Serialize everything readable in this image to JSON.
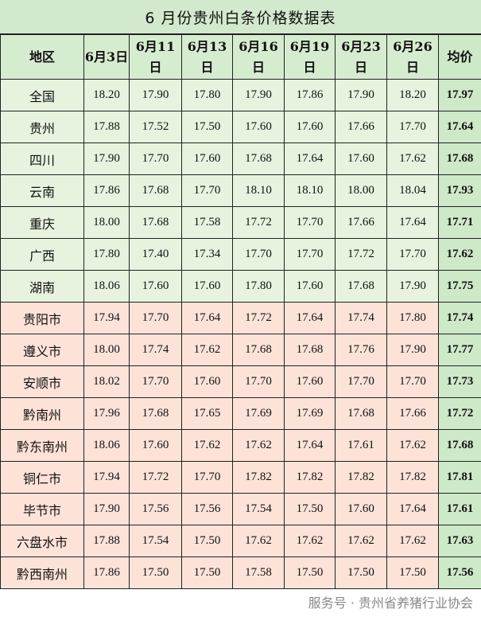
{
  "title": "6 月份贵州白条价格数据表",
  "headers": [
    "地区",
    "6月3日",
    "6月11日",
    "6月13日",
    "6月16日",
    "6月19日",
    "6月23日",
    "6月26日",
    "均价"
  ],
  "colors": {
    "province_row": "#e7f3de",
    "city_row": "#fde3d7",
    "avg_column": "#cde9c8",
    "title_bg": "#d3e9cd"
  },
  "rows": [
    {
      "region": "全国",
      "group": "province",
      "values": [
        "18.20",
        "17.90",
        "17.80",
        "17.90",
        "17.86",
        "17.90",
        "18.20"
      ],
      "avg": "17.97"
    },
    {
      "region": "贵州",
      "group": "province",
      "values": [
        "17.88",
        "17.52",
        "17.50",
        "17.60",
        "17.60",
        "17.66",
        "17.70"
      ],
      "avg": "17.64"
    },
    {
      "region": "四川",
      "group": "province",
      "values": [
        "17.90",
        "17.70",
        "17.60",
        "17.68",
        "17.64",
        "17.60",
        "17.62"
      ],
      "avg": "17.68"
    },
    {
      "region": "云南",
      "group": "province",
      "values": [
        "17.86",
        "17.68",
        "17.70",
        "18.10",
        "18.10",
        "18.00",
        "18.04"
      ],
      "avg": "17.93"
    },
    {
      "region": "重庆",
      "group": "province",
      "values": [
        "18.00",
        "17.68",
        "17.58",
        "17.72",
        "17.70",
        "17.66",
        "17.64"
      ],
      "avg": "17.71"
    },
    {
      "region": "广西",
      "group": "province",
      "values": [
        "17.80",
        "17.40",
        "17.34",
        "17.70",
        "17.70",
        "17.72",
        "17.70"
      ],
      "avg": "17.62"
    },
    {
      "region": "湖南",
      "group": "province",
      "values": [
        "18.06",
        "17.60",
        "17.60",
        "17.80",
        "17.60",
        "17.68",
        "17.90"
      ],
      "avg": "17.75"
    },
    {
      "region": "贵阳市",
      "group": "city",
      "values": [
        "17.94",
        "17.70",
        "17.64",
        "17.72",
        "17.64",
        "17.74",
        "17.80"
      ],
      "avg": "17.74"
    },
    {
      "region": "遵义市",
      "group": "city",
      "values": [
        "18.00",
        "17.74",
        "17.62",
        "17.68",
        "17.68",
        "17.76",
        "17.90"
      ],
      "avg": "17.77"
    },
    {
      "region": "安顺市",
      "group": "city",
      "values": [
        "18.02",
        "17.70",
        "17.60",
        "17.70",
        "17.60",
        "17.70",
        "17.70"
      ],
      "avg": "17.73"
    },
    {
      "region": "黔南州",
      "group": "city",
      "values": [
        "17.96",
        "17.68",
        "17.65",
        "17.69",
        "17.69",
        "17.68",
        "17.66"
      ],
      "avg": "17.72"
    },
    {
      "region": "黔东南州",
      "group": "city",
      "values": [
        "18.06",
        "17.60",
        "17.62",
        "17.62",
        "17.64",
        "17.61",
        "17.62"
      ],
      "avg": "17.68"
    },
    {
      "region": "铜仁市",
      "group": "city",
      "values": [
        "17.94",
        "17.72",
        "17.70",
        "17.82",
        "17.82",
        "17.82",
        "17.82"
      ],
      "avg": "17.81"
    },
    {
      "region": "毕节市",
      "group": "city",
      "values": [
        "17.90",
        "17.56",
        "17.56",
        "17.54",
        "17.50",
        "17.60",
        "17.64"
      ],
      "avg": "17.61"
    },
    {
      "region": "六盘水市",
      "group": "city",
      "values": [
        "17.88",
        "17.54",
        "17.50",
        "17.62",
        "17.62",
        "17.62",
        "17.62"
      ],
      "avg": "17.63"
    },
    {
      "region": "黔西南州",
      "group": "city",
      "values": [
        "17.86",
        "17.50",
        "17.50",
        "17.58",
        "17.50",
        "17.50",
        "17.50"
      ],
      "avg": "17.56"
    }
  ],
  "watermark": "服务号 · 贵州省养猪行业协会"
}
